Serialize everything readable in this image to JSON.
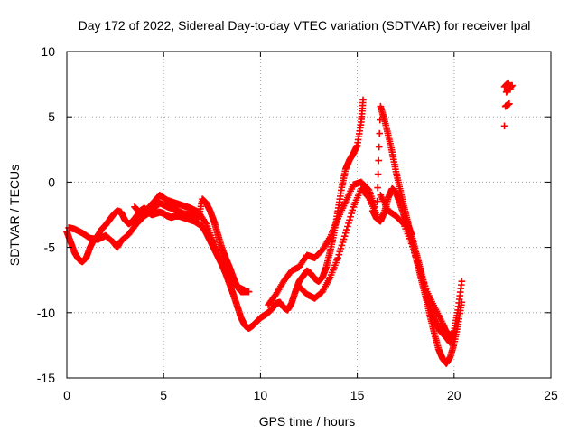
{
  "chart_data": {
    "type": "scatter",
    "title": "Day 172 of 2022, Sidereal Day-to-day VTEC variation (SDTVAR) for receiver lpal",
    "xlabel": "GPS time / hours",
    "ylabel": "SDTVAR / TECUs",
    "xlim": [
      0,
      25
    ],
    "ylim": [
      -15,
      10
    ],
    "xticks": [
      "0",
      "5",
      "10",
      "15",
      "20",
      "25"
    ],
    "yticks": [
      "-15",
      "-10",
      "-5",
      "0",
      "5",
      "10"
    ],
    "grid": true,
    "marker": "plus",
    "series": [
      {
        "name": "SDTVAR",
        "color": "#ff0000",
        "points": [
          [
            0.0,
            -3.8
          ],
          [
            0.2,
            -4.6
          ],
          [
            0.4,
            -5.4
          ],
          [
            0.6,
            -5.9
          ],
          [
            0.8,
            -6.1
          ],
          [
            1.0,
            -5.8
          ],
          [
            1.2,
            -5.0
          ],
          [
            1.4,
            -4.4
          ],
          [
            1.6,
            -4.1
          ],
          [
            1.8,
            -3.6
          ],
          [
            2.0,
            -3.3
          ],
          [
            2.2,
            -2.9
          ],
          [
            2.4,
            -2.5
          ],
          [
            2.6,
            -2.2
          ],
          [
            2.8,
            -2.3
          ],
          [
            3.0,
            -2.9
          ],
          [
            3.2,
            -3.2
          ],
          [
            3.4,
            -3.0
          ],
          [
            3.6,
            -2.6
          ],
          [
            3.8,
            -2.2
          ],
          [
            4.0,
            -2.0
          ],
          [
            4.2,
            -2.3
          ],
          [
            4.4,
            -2.5
          ],
          [
            4.6,
            -2.4
          ],
          [
            4.8,
            -2.3
          ],
          [
            5.0,
            -2.4
          ],
          [
            5.2,
            -2.6
          ],
          [
            5.4,
            -2.7
          ],
          [
            5.6,
            -2.6
          ],
          [
            5.8,
            -2.6
          ],
          [
            6.0,
            -2.7
          ],
          [
            6.2,
            -2.8
          ],
          [
            6.4,
            -2.9
          ],
          [
            6.6,
            -3.0
          ],
          [
            6.8,
            -3.2
          ],
          [
            7.0,
            -3.4
          ],
          [
            7.2,
            -3.9
          ],
          [
            7.4,
            -4.5
          ],
          [
            7.6,
            -5.1
          ],
          [
            7.8,
            -5.7
          ],
          [
            8.0,
            -6.3
          ],
          [
            8.2,
            -7.0
          ],
          [
            8.4,
            -7.8
          ],
          [
            8.6,
            -8.6
          ],
          [
            8.8,
            -9.5
          ],
          [
            9.0,
            -10.4
          ],
          [
            9.2,
            -11.0
          ],
          [
            9.4,
            -11.2
          ],
          [
            9.6,
            -11.0
          ],
          [
            9.8,
            -10.7
          ],
          [
            10.0,
            -10.4
          ],
          [
            10.2,
            -10.2
          ],
          [
            10.4,
            -10.0
          ],
          [
            10.6,
            -9.7
          ],
          [
            10.8,
            -9.3
          ],
          [
            11.0,
            -9.2
          ],
          [
            11.2,
            -9.6
          ],
          [
            11.4,
            -9.8
          ],
          [
            11.6,
            -9.3
          ],
          [
            11.8,
            -8.4
          ],
          [
            12.0,
            -7.6
          ],
          [
            12.2,
            -7.2
          ],
          [
            12.4,
            -6.8
          ],
          [
            12.6,
            -7.0
          ],
          [
            12.8,
            -7.4
          ],
          [
            13.0,
            -7.6
          ],
          [
            13.2,
            -7.3
          ],
          [
            13.4,
            -6.5
          ],
          [
            13.6,
            -5.3
          ],
          [
            13.8,
            -3.9
          ],
          [
            14.0,
            -2.2
          ],
          [
            14.2,
            -0.4
          ],
          [
            14.4,
            1.0
          ],
          [
            14.6,
            1.7
          ],
          [
            14.8,
            2.2
          ],
          [
            15.0,
            2.8
          ],
          [
            15.2,
            4.6
          ],
          [
            15.3,
            6.3
          ],
          [
            0.1,
            -3.5
          ],
          [
            0.4,
            -3.6
          ],
          [
            0.8,
            -3.9
          ],
          [
            1.2,
            -4.3
          ],
          [
            1.6,
            -4.4
          ],
          [
            2.0,
            -4.1
          ],
          [
            2.4,
            -4.6
          ],
          [
            2.6,
            -5.0
          ],
          [
            2.8,
            -4.5
          ],
          [
            3.2,
            -4.0
          ],
          [
            3.6,
            -3.2
          ],
          [
            4.0,
            -2.6
          ],
          [
            4.4,
            -2.2
          ],
          [
            4.8,
            -1.6
          ],
          [
            5.2,
            -1.9
          ],
          [
            5.6,
            -2.1
          ],
          [
            6.0,
            -2.4
          ],
          [
            6.4,
            -2.5
          ],
          [
            6.8,
            -2.8
          ],
          [
            7.0,
            -1.3
          ],
          [
            7.2,
            -1.6
          ],
          [
            7.4,
            -2.2
          ],
          [
            7.6,
            -3.0
          ],
          [
            7.8,
            -4.0
          ],
          [
            8.0,
            -5.0
          ],
          [
            8.2,
            -5.8
          ],
          [
            8.4,
            -6.5
          ],
          [
            8.6,
            -7.3
          ],
          [
            8.8,
            -8.0
          ],
          [
            9.0,
            -8.4
          ],
          [
            9.2,
            -8.4
          ],
          [
            9.4,
            -8.4
          ],
          [
            3.5,
            -1.9
          ],
          [
            3.8,
            -2.4
          ],
          [
            4.2,
            -2.0
          ],
          [
            4.5,
            -1.5
          ],
          [
            4.8,
            -1.0
          ],
          [
            5.2,
            -1.4
          ],
          [
            5.6,
            -1.6
          ],
          [
            6.0,
            -1.8
          ],
          [
            6.4,
            -2.0
          ],
          [
            6.8,
            -2.3
          ],
          [
            7.2,
            -3.2
          ],
          [
            7.6,
            -4.6
          ],
          [
            8.0,
            -6.0
          ],
          [
            8.4,
            -7.2
          ],
          [
            8.8,
            -8.0
          ],
          [
            9.2,
            -8.3
          ],
          [
            10.4,
            -9.4
          ],
          [
            10.8,
            -8.6
          ],
          [
            11.2,
            -7.6
          ],
          [
            11.6,
            -6.8
          ],
          [
            12.0,
            -6.5
          ],
          [
            12.4,
            -5.6
          ],
          [
            12.8,
            -5.8
          ],
          [
            13.2,
            -5.2
          ],
          [
            13.6,
            -4.2
          ],
          [
            14.0,
            -2.8
          ],
          [
            14.4,
            -1.5
          ],
          [
            14.8,
            -0.2
          ],
          [
            15.2,
            0.0
          ],
          [
            15.6,
            -0.6
          ],
          [
            15.9,
            -1.9
          ],
          [
            12.0,
            -8.0
          ],
          [
            12.4,
            -8.6
          ],
          [
            12.8,
            -8.9
          ],
          [
            13.2,
            -8.4
          ],
          [
            13.6,
            -7.3
          ],
          [
            14.0,
            -5.8
          ],
          [
            14.4,
            -3.9
          ],
          [
            14.8,
            -1.9
          ],
          [
            15.2,
            -0.5
          ],
          [
            15.6,
            -1.2
          ],
          [
            16.0,
            -2.5
          ],
          [
            16.2,
            5.8
          ],
          [
            16.4,
            4.8
          ],
          [
            16.6,
            3.6
          ],
          [
            16.8,
            2.3
          ],
          [
            17.0,
            0.8
          ],
          [
            17.2,
            -0.5
          ],
          [
            17.4,
            -1.8
          ],
          [
            17.6,
            -3.0
          ],
          [
            17.8,
            -4.3
          ],
          [
            18.0,
            -5.6
          ],
          [
            18.2,
            -6.8
          ],
          [
            18.4,
            -8.0
          ],
          [
            18.6,
            -9.2
          ],
          [
            18.8,
            -10.5
          ],
          [
            19.0,
            -11.7
          ],
          [
            19.2,
            -12.8
          ],
          [
            19.4,
            -13.5
          ],
          [
            19.6,
            -13.9
          ],
          [
            19.8,
            -13.4
          ],
          [
            20.0,
            -12.4
          ],
          [
            20.2,
            -10.9
          ],
          [
            20.4,
            -9.2
          ],
          [
            15.8,
            -2.2
          ],
          [
            16.0,
            -2.8
          ],
          [
            16.2,
            -3.0
          ],
          [
            16.4,
            -2.3
          ],
          [
            16.6,
            -1.2
          ],
          [
            16.8,
            -0.5
          ],
          [
            17.0,
            -0.8
          ],
          [
            17.2,
            -1.6
          ],
          [
            17.4,
            -2.5
          ],
          [
            17.6,
            -3.2
          ],
          [
            17.8,
            -4.0
          ],
          [
            18.0,
            -5.2
          ],
          [
            18.2,
            -6.3
          ],
          [
            18.4,
            -7.5
          ],
          [
            18.6,
            -8.7
          ],
          [
            18.8,
            -9.8
          ],
          [
            19.0,
            -10.6
          ],
          [
            19.2,
            -11.2
          ],
          [
            19.4,
            -11.6
          ],
          [
            19.6,
            -11.9
          ],
          [
            19.8,
            -12.3
          ],
          [
            20.0,
            -11.4
          ],
          [
            20.2,
            -9.8
          ],
          [
            20.4,
            -7.6
          ],
          [
            16.2,
            -1.0
          ],
          [
            16.6,
            -2.2
          ],
          [
            17.0,
            -2.6
          ],
          [
            17.4,
            -3.2
          ],
          [
            17.8,
            -4.7
          ],
          [
            18.2,
            -6.6
          ],
          [
            18.6,
            -8.4
          ],
          [
            19.0,
            -9.6
          ],
          [
            19.4,
            -10.8
          ],
          [
            19.6,
            -11.5
          ],
          [
            19.8,
            -11.7
          ],
          [
            22.6,
            7.3
          ],
          [
            22.8,
            7.6
          ],
          [
            22.9,
            7.1
          ],
          [
            22.7,
            6.9
          ],
          [
            23.0,
            7.4
          ],
          [
            22.65,
            5.8
          ],
          [
            22.85,
            6.0
          ],
          [
            22.6,
            4.3
          ]
        ]
      }
    ]
  }
}
